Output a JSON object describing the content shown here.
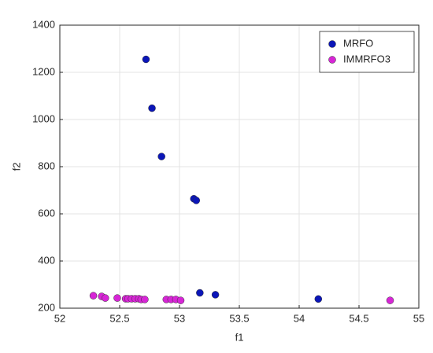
{
  "chart_data": {
    "type": "scatter",
    "xlabel": "f1",
    "ylabel": "f2",
    "xlim": [
      52,
      55
    ],
    "ylim": [
      200,
      1400
    ],
    "xticks": [
      52,
      52.5,
      53,
      53.5,
      54,
      54.5,
      55
    ],
    "yticks": [
      200,
      400,
      600,
      800,
      1000,
      1200,
      1400
    ],
    "grid": true,
    "legend": "upper-right",
    "series": [
      {
        "name": "MRFO",
        "color": "#0b16b8",
        "x": [
          52.72,
          52.77,
          52.85,
          53.12,
          53.14,
          53.17,
          53.3,
          54.16
        ],
        "y": [
          1255,
          1048,
          843,
          664,
          657,
          265,
          257,
          239
        ]
      },
      {
        "name": "IMMRFO3",
        "color": "#d726d6",
        "x": [
          52.28,
          52.35,
          52.38,
          52.48,
          52.55,
          52.57,
          52.6,
          52.63,
          52.66,
          52.68,
          52.71,
          52.89,
          52.93,
          52.97,
          53.01,
          54.76
        ],
        "y": [
          253,
          250,
          243,
          243,
          240,
          240,
          240,
          240,
          240,
          237,
          237,
          237,
          237,
          237,
          233,
          233
        ]
      }
    ]
  }
}
